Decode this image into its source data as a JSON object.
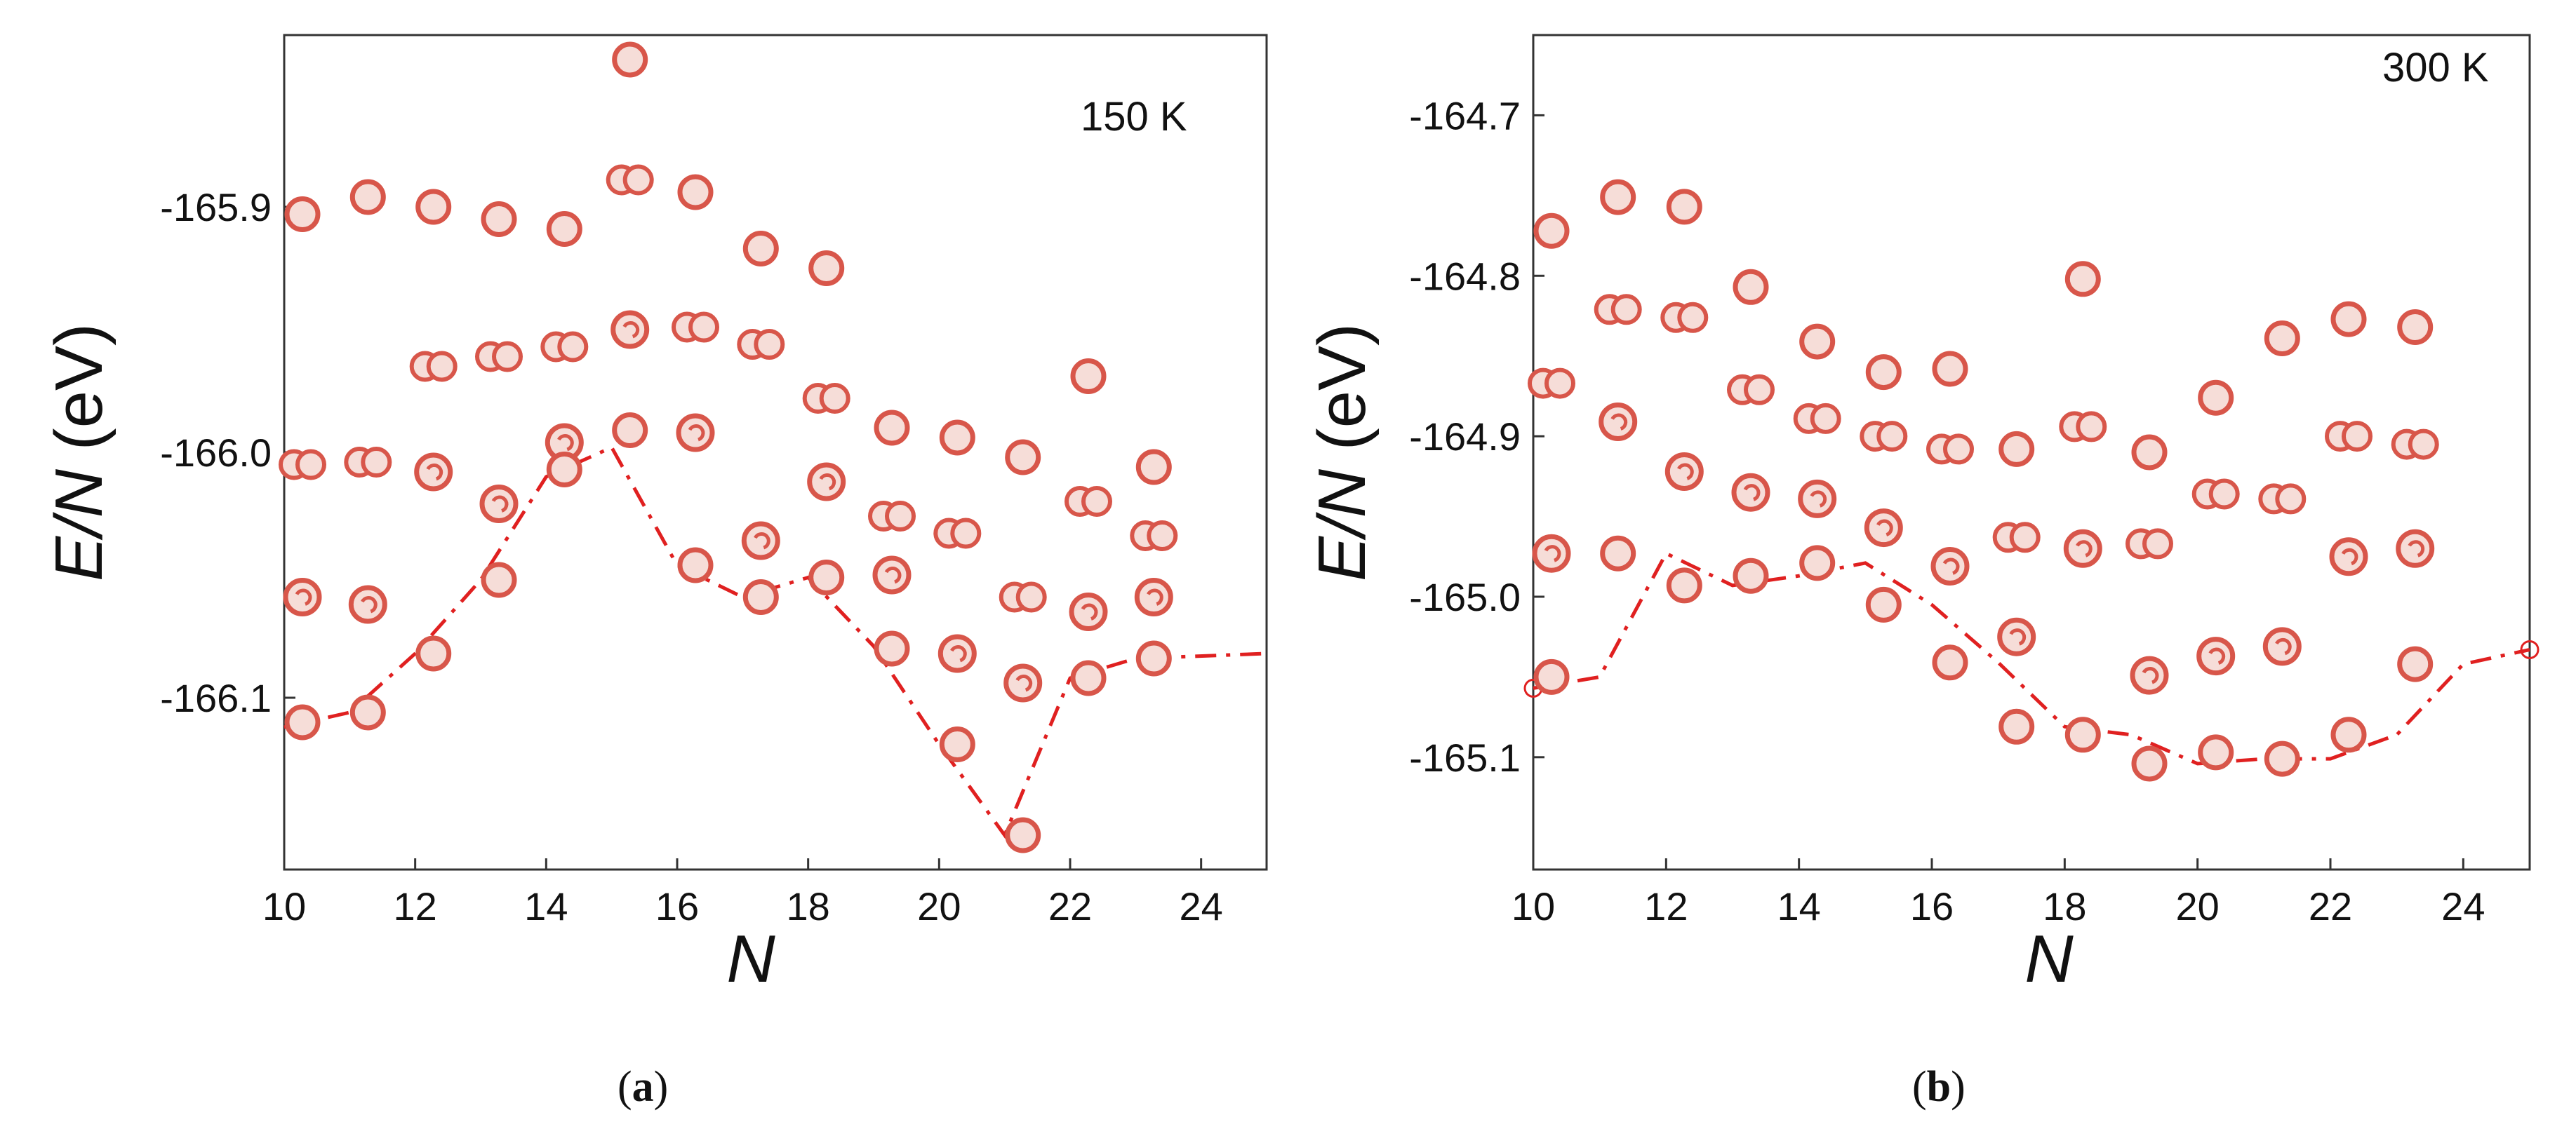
{
  "colors": {
    "cluster": "#d8564a",
    "cluster_fill": "#f6ddd8",
    "min_line": "#e02020",
    "axis": "#333333"
  },
  "chart_data": [
    {
      "type": "scatter",
      "panel_caption": "a",
      "temperature_label": "150 K",
      "xlabel": "N",
      "ylabel": "E/N (eV)",
      "xlim": [
        10,
        25
      ],
      "ylim": [
        -166.17,
        -165.83
      ],
      "xticks": [
        "10",
        "12",
        "14",
        "16",
        "18",
        "20",
        "22",
        "24"
      ],
      "yticks": [
        "-165.9",
        "-166.0",
        "-166.1"
      ],
      "points": [
        {
          "n": 10,
          "e": -165.903
        },
        {
          "n": 10,
          "e": -166.005
        },
        {
          "n": 10,
          "e": -166.059
        },
        {
          "n": 10,
          "e": -166.11
        },
        {
          "n": 11,
          "e": -165.896
        },
        {
          "n": 11,
          "e": -166.004
        },
        {
          "n": 11,
          "e": -166.062
        },
        {
          "n": 11,
          "e": -166.106
        },
        {
          "n": 12,
          "e": -165.9
        },
        {
          "n": 12,
          "e": -165.965
        },
        {
          "n": 12,
          "e": -166.008
        },
        {
          "n": 12,
          "e": -166.082
        },
        {
          "n": 13,
          "e": -165.905
        },
        {
          "n": 13,
          "e": -165.961
        },
        {
          "n": 13,
          "e": -166.021
        },
        {
          "n": 13,
          "e": -166.052
        },
        {
          "n": 14,
          "e": -165.909
        },
        {
          "n": 14,
          "e": -165.957
        },
        {
          "n": 14,
          "e": -165.996
        },
        {
          "n": 14,
          "e": -166.007
        },
        {
          "n": 15,
          "e": -165.84
        },
        {
          "n": 15,
          "e": -165.889
        },
        {
          "n": 15,
          "e": -165.95
        },
        {
          "n": 15,
          "e": -165.991
        },
        {
          "n": 16,
          "e": -165.894
        },
        {
          "n": 16,
          "e": -165.949
        },
        {
          "n": 16,
          "e": -165.992
        },
        {
          "n": 16,
          "e": -166.046
        },
        {
          "n": 17,
          "e": -165.917
        },
        {
          "n": 17,
          "e": -165.956
        },
        {
          "n": 17,
          "e": -166.036
        },
        {
          "n": 17,
          "e": -166.059
        },
        {
          "n": 18,
          "e": -165.925
        },
        {
          "n": 18,
          "e": -165.978
        },
        {
          "n": 18,
          "e": -166.012
        },
        {
          "n": 18,
          "e": -166.051
        },
        {
          "n": 19,
          "e": -165.99
        },
        {
          "n": 19,
          "e": -166.026
        },
        {
          "n": 19,
          "e": -166.05
        },
        {
          "n": 19,
          "e": -166.08
        },
        {
          "n": 20,
          "e": -165.994
        },
        {
          "n": 20,
          "e": -166.033
        },
        {
          "n": 20,
          "e": -166.082
        },
        {
          "n": 20,
          "e": -166.119
        },
        {
          "n": 21,
          "e": -166.002
        },
        {
          "n": 21,
          "e": -166.059
        },
        {
          "n": 21,
          "e": -166.094
        },
        {
          "n": 21,
          "e": -166.156
        },
        {
          "n": 22,
          "e": -165.969
        },
        {
          "n": 22,
          "e": -166.02
        },
        {
          "n": 22,
          "e": -166.065
        },
        {
          "n": 22,
          "e": -166.092
        },
        {
          "n": 23,
          "e": -166.006
        },
        {
          "n": 23,
          "e": -166.034
        },
        {
          "n": 23,
          "e": -166.059
        },
        {
          "n": 23,
          "e": -166.084
        }
      ],
      "min_line": [
        {
          "n": 10,
          "e": -166.112
        },
        {
          "n": 11,
          "e": -166.106
        },
        {
          "n": 12,
          "e": -166.082
        },
        {
          "n": 13,
          "e": -166.052
        },
        {
          "n": 14,
          "e": -166.01
        },
        {
          "n": 15,
          "e": -165.998
        },
        {
          "n": 16,
          "e": -166.046
        },
        {
          "n": 17,
          "e": -166.059
        },
        {
          "n": 18,
          "e": -166.051
        },
        {
          "n": 19,
          "e": -166.079
        },
        {
          "n": 20,
          "e": -166.119
        },
        {
          "n": 21,
          "e": -166.156
        },
        {
          "n": 22,
          "e": -166.092
        },
        {
          "n": 23,
          "e": -166.084
        },
        {
          "n": 25,
          "e": -166.082
        }
      ]
    },
    {
      "type": "scatter",
      "panel_caption": "b",
      "temperature_label": "300 K",
      "xlabel": "N",
      "ylabel": "E/N (eV)",
      "xlim": [
        10,
        25
      ],
      "ylim": [
        -165.17,
        -164.65
      ],
      "xticks": [
        "10",
        "12",
        "14",
        "16",
        "18",
        "20",
        "22",
        "24"
      ],
      "yticks": [
        "-164.7",
        "-164.8",
        "-164.9",
        "-165.0",
        "-165.1"
      ],
      "points": [
        {
          "n": 10,
          "e": -164.772
        },
        {
          "n": 10,
          "e": -164.867
        },
        {
          "n": 10,
          "e": -164.973
        },
        {
          "n": 10,
          "e": -165.05
        },
        {
          "n": 11,
          "e": -164.751
        },
        {
          "n": 11,
          "e": -164.821
        },
        {
          "n": 11,
          "e": -164.891
        },
        {
          "n": 11,
          "e": -164.973
        },
        {
          "n": 12,
          "e": -164.757
        },
        {
          "n": 12,
          "e": -164.826
        },
        {
          "n": 12,
          "e": -164.922
        },
        {
          "n": 12,
          "e": -164.993
        },
        {
          "n": 13,
          "e": -164.807
        },
        {
          "n": 13,
          "e": -164.871
        },
        {
          "n": 13,
          "e": -164.935
        },
        {
          "n": 13,
          "e": -164.987
        },
        {
          "n": 14,
          "e": -164.841
        },
        {
          "n": 14,
          "e": -164.889
        },
        {
          "n": 14,
          "e": -164.939
        },
        {
          "n": 14,
          "e": -164.979
        },
        {
          "n": 15,
          "e": -164.86
        },
        {
          "n": 15,
          "e": -164.9
        },
        {
          "n": 15,
          "e": -164.957
        },
        {
          "n": 15,
          "e": -165.005
        },
        {
          "n": 16,
          "e": -164.858
        },
        {
          "n": 16,
          "e": -164.908
        },
        {
          "n": 16,
          "e": -164.981
        },
        {
          "n": 16,
          "e": -165.041
        },
        {
          "n": 17,
          "e": -164.908
        },
        {
          "n": 17,
          "e": -164.963
        },
        {
          "n": 17,
          "e": -165.025
        },
        {
          "n": 17,
          "e": -165.081
        },
        {
          "n": 18,
          "e": -164.802
        },
        {
          "n": 18,
          "e": -164.894
        },
        {
          "n": 18,
          "e": -164.97
        },
        {
          "n": 18,
          "e": -165.086
        },
        {
          "n": 19,
          "e": -164.91
        },
        {
          "n": 19,
          "e": -164.967
        },
        {
          "n": 19,
          "e": -165.049
        },
        {
          "n": 19,
          "e": -165.104
        },
        {
          "n": 20,
          "e": -164.876
        },
        {
          "n": 20,
          "e": -164.936
        },
        {
          "n": 20,
          "e": -165.037
        },
        {
          "n": 20,
          "e": -165.097
        },
        {
          "n": 21,
          "e": -164.839
        },
        {
          "n": 21,
          "e": -164.939
        },
        {
          "n": 21,
          "e": -165.031
        },
        {
          "n": 21,
          "e": -165.101
        },
        {
          "n": 22,
          "e": -164.827
        },
        {
          "n": 22,
          "e": -164.9
        },
        {
          "n": 22,
          "e": -164.975
        },
        {
          "n": 22,
          "e": -165.086
        },
        {
          "n": 23,
          "e": -164.832
        },
        {
          "n": 23,
          "e": -164.905
        },
        {
          "n": 23,
          "e": -164.97
        },
        {
          "n": 23,
          "e": -165.042
        }
      ],
      "min_line": [
        {
          "n": 10,
          "e": -165.057
        },
        {
          "n": 11,
          "e": -165.05
        },
        {
          "n": 12,
          "e": -164.973
        },
        {
          "n": 13,
          "e": -164.993
        },
        {
          "n": 14,
          "e": -164.987
        },
        {
          "n": 15,
          "e": -164.979
        },
        {
          "n": 16,
          "e": -165.005
        },
        {
          "n": 17,
          "e": -165.041
        },
        {
          "n": 18,
          "e": -165.081
        },
        {
          "n": 19,
          "e": -165.086
        },
        {
          "n": 20,
          "e": -165.104
        },
        {
          "n": 21,
          "e": -165.101
        },
        {
          "n": 22,
          "e": -165.101
        },
        {
          "n": 23,
          "e": -165.086
        },
        {
          "n": 24,
          "e": -165.042
        },
        {
          "n": 25,
          "e": -165.033
        }
      ]
    }
  ]
}
